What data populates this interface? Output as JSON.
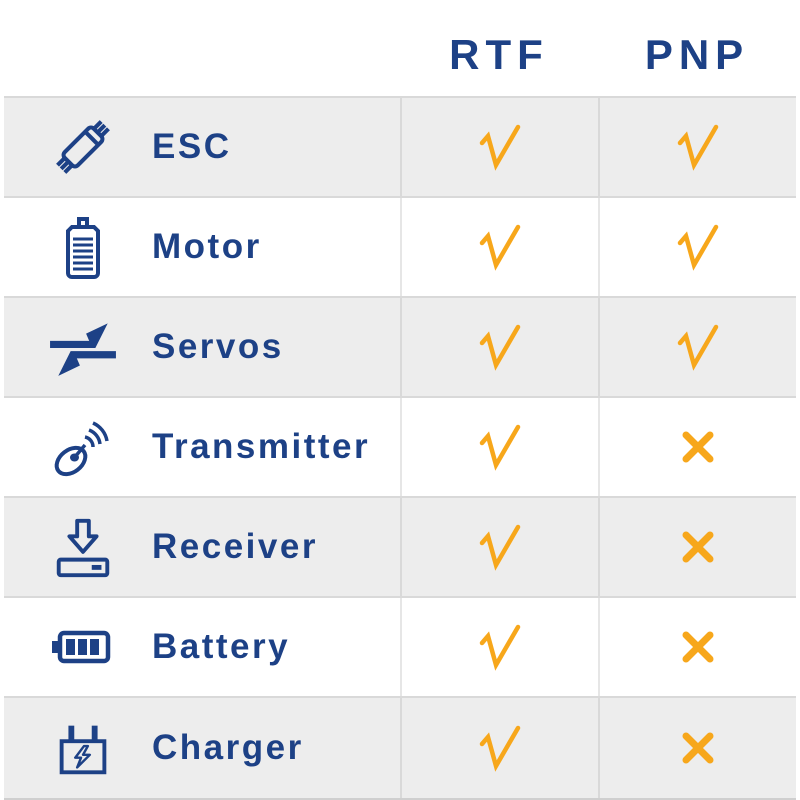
{
  "table": {
    "columns": [
      {
        "key": "rtf",
        "label": "RTF"
      },
      {
        "key": "pnp",
        "label": "PNP"
      }
    ],
    "rows": [
      {
        "label": "ESC",
        "icon": "esc-icon",
        "rtf": "check",
        "pnp": "check"
      },
      {
        "label": "Motor",
        "icon": "motor-icon",
        "rtf": "check",
        "pnp": "check"
      },
      {
        "label": "Servos",
        "icon": "servos-icon",
        "rtf": "check",
        "pnp": "check"
      },
      {
        "label": "Transmitter",
        "icon": "transmitter-icon",
        "rtf": "check",
        "pnp": "cross"
      },
      {
        "label": "Receiver",
        "icon": "receiver-icon",
        "rtf": "check",
        "pnp": "cross"
      },
      {
        "label": "Battery",
        "icon": "battery-icon",
        "rtf": "check",
        "pnp": "cross"
      },
      {
        "label": "Charger",
        "icon": "charger-icon",
        "rtf": "check",
        "pnp": "cross"
      }
    ],
    "mark_meanings": {
      "check": "included",
      "cross": "not included"
    },
    "colors": {
      "navy": "#1d4186",
      "orange": "#f7a71b",
      "row_alt": "#ededed",
      "divider": "#d9d9d9"
    }
  }
}
